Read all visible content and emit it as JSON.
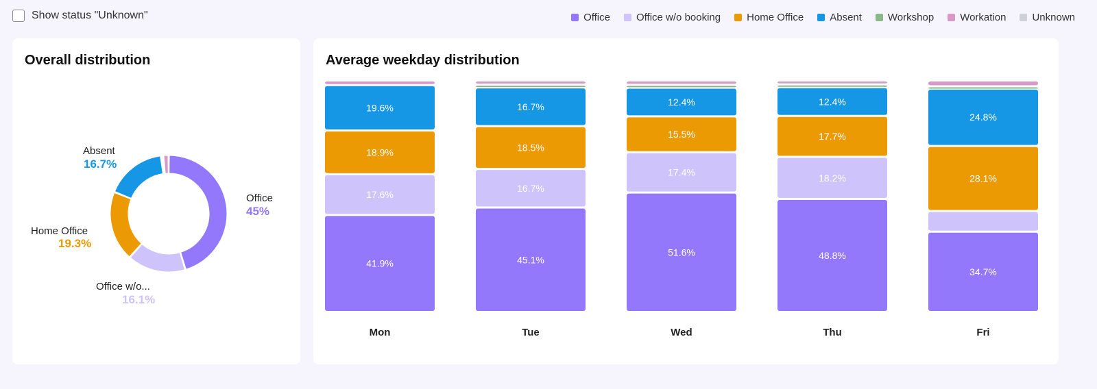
{
  "toggle": {
    "label": "Show status \"Unknown\"",
    "checked": false
  },
  "legend": [
    {
      "label": "Office",
      "color": "#9378fb"
    },
    {
      "label": "Office w/o booking",
      "color": "#cfc3fc"
    },
    {
      "label": "Home Office",
      "color": "#ec9a03"
    },
    {
      "label": "Absent",
      "color": "#1597e5"
    },
    {
      "label": "Workshop",
      "color": "#8ab888"
    },
    {
      "label": "Workation",
      "color": "#d899c8"
    },
    {
      "label": "Unknown",
      "color": "#d0d0d8"
    }
  ],
  "overall": {
    "title": "Overall distribution",
    "labels": {
      "office": {
        "name": "Office",
        "pct": "45%"
      },
      "office_wo": {
        "name": "Office w/o...",
        "pct": "16.1%"
      },
      "home": {
        "name": "Home Office",
        "pct": "19.3%"
      },
      "absent": {
        "name": "Absent",
        "pct": "16.7%"
      }
    }
  },
  "weekday": {
    "title": "Average weekday distribution"
  },
  "chart_data": [
    {
      "type": "pie",
      "title": "Overall distribution",
      "slices": [
        {
          "name": "Office",
          "value": 45,
          "color": "#9378fb"
        },
        {
          "name": "Office w/o booking",
          "value": 16.1,
          "color": "#cfc3fc"
        },
        {
          "name": "Home Office",
          "value": 19.3,
          "color": "#ec9a03"
        },
        {
          "name": "Absent",
          "value": 16.7,
          "color": "#1597e5"
        },
        {
          "name": "Workshop",
          "value": 0.6,
          "color": "#8ab888"
        },
        {
          "name": "Workation",
          "value": 1.5,
          "color": "#d899c8"
        }
      ]
    },
    {
      "type": "bar",
      "stacked": true,
      "title": "Average weekday distribution",
      "categories": [
        "Mon",
        "Tue",
        "Wed",
        "Thu",
        "Fri"
      ],
      "series": [
        {
          "name": "Office",
          "color": "#9378fb",
          "values": [
            41.9,
            45.1,
            51.6,
            48.8,
            34.7
          ],
          "labels": [
            "41.9%",
            "45.1%",
            "51.6%",
            "48.8%",
            "34.7%"
          ]
        },
        {
          "name": "Office w/o booking",
          "color": "#cfc3fc",
          "values": [
            17.6,
            16.7,
            17.4,
            18.2,
            8.9
          ],
          "labels": [
            "17.6%",
            "16.7%",
            "17.4%",
            "18.2%",
            ""
          ]
        },
        {
          "name": "Home Office",
          "color": "#ec9a03",
          "values": [
            18.9,
            18.5,
            15.5,
            17.7,
            28.1
          ],
          "labels": [
            "18.9%",
            "18.5%",
            "15.5%",
            "17.7%",
            "28.1%"
          ]
        },
        {
          "name": "Absent",
          "color": "#1597e5",
          "values": [
            19.6,
            16.7,
            12.4,
            12.4,
            24.8
          ],
          "labels": [
            "19.6%",
            "16.7%",
            "12.4%",
            "12.4%",
            "24.8%"
          ]
        },
        {
          "name": "Workshop",
          "color": "#8ab888",
          "values": [
            0,
            1.2,
            1.2,
            1.2,
            1.0
          ],
          "labels": [
            "",
            "",
            "",
            "",
            ""
          ]
        },
        {
          "name": "Workation",
          "color": "#d899c8",
          "values": [
            2.0,
            1.8,
            1.9,
            1.7,
            2.5
          ],
          "labels": [
            "",
            "",
            "",
            "",
            ""
          ]
        }
      ],
      "ylim": [
        0,
        100
      ]
    }
  ]
}
